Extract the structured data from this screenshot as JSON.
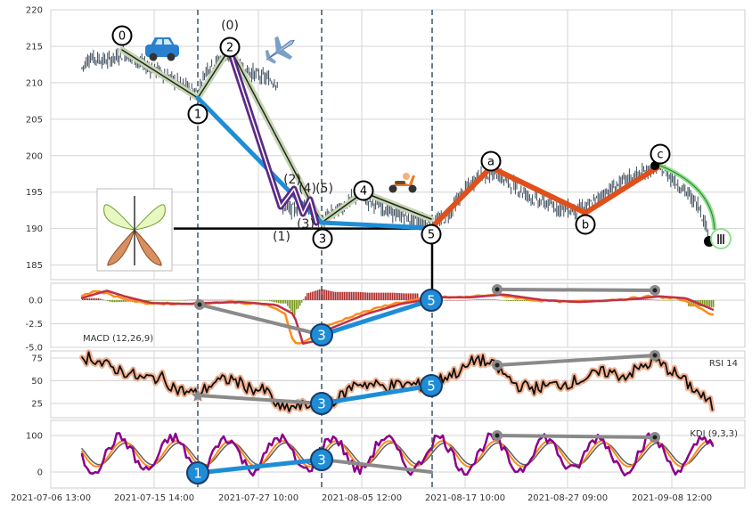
{
  "chart_data": [
    {
      "type": "line",
      "panel": "price",
      "yticks": [
        "220",
        "215",
        "210",
        "205",
        "200",
        "195",
        "190",
        "185"
      ],
      "ylim": [
        183,
        220
      ],
      "xticks": [
        "2021-07-06 13:00",
        "2021-07-15 14:00",
        "2021-07-27 10:00",
        "2021-08-05 12:00",
        "2021-08-17 10:00",
        "2021-08-27 09:00",
        "2021-09-08 12:00"
      ],
      "grid": true,
      "series": [
        {
          "role": "primary-wave-path",
          "color": "#1f8dd6",
          "points": [
            [
              0.195,
              208.2
            ],
            [
              0.265,
              191.5
            ],
            [
              0.48,
              190.5
            ]
          ]
        },
        {
          "role": "correction-path",
          "color": "#e0501a",
          "points": [
            [
              0.48,
              190.5
            ],
            [
              0.56,
              198
            ],
            [
              0.66,
              192.5
            ],
            [
              0.76,
              198.5
            ]
          ]
        },
        {
          "role": "intermediate-path",
          "color": "#c8d4b4",
          "points": [
            [
              0.06,
              214.5
            ],
            [
              0.195,
              208.2
            ],
            [
              0.225,
              214
            ],
            [
              0.265,
              191.5
            ],
            [
              0.345,
              193
            ],
            [
              0.48,
              190.5
            ]
          ]
        }
      ],
      "wave_labels": [
        "0",
        "1",
        "2",
        "3",
        "4",
        "5",
        "a",
        "b",
        "c",
        "(0)",
        "(1)",
        "(2)",
        "(3)",
        "(4)",
        "(5)",
        "Ⅲ"
      ],
      "support_level": 190
    },
    {
      "type": "line",
      "panel": "macd",
      "title": "MACD (12,26,9)",
      "yticks": [
        "0.0",
        "-2.5",
        "-5.0"
      ],
      "ylim": [
        -5.2,
        1.4
      ],
      "markers": [
        "3",
        "5"
      ]
    },
    {
      "type": "line",
      "panel": "rsi",
      "title": "RSI 14",
      "yticks": [
        "75",
        "50",
        "25"
      ],
      "ylim": [
        10,
        80
      ],
      "markers": [
        "3",
        "5"
      ]
    },
    {
      "type": "line",
      "panel": "kdj",
      "title": "KDJ (9,3,3)",
      "yticks": [
        "100",
        "0"
      ],
      "ylim": [
        -25,
        120
      ],
      "markers": [
        "1",
        "3"
      ]
    }
  ],
  "colors": {
    "grid": "#d4d4d4",
    "candle": "#3a4a5a",
    "macd_fast": "#ff8c1a",
    "macd_slow": "#c0304a",
    "hist_pos": "#b03030",
    "hist_neg": "#7a9a20",
    "rsi_line": "#111111",
    "rsi_glow": "#f0b090",
    "kdj_k": "#8b008b",
    "kdj_d": "#ff8c1a",
    "kdj_j": "#606060",
    "wave_blue": "#1f8dd6",
    "wave_purple": "#5b2a86",
    "wave_orange": "#e0501a",
    "wave_green": "#90e090",
    "divergence": "#8a8a8a",
    "vline": "#3e5566"
  },
  "icons": [
    "car-icon",
    "airplane-icon",
    "scooter-icon",
    "butterfly-inset-icon"
  ]
}
